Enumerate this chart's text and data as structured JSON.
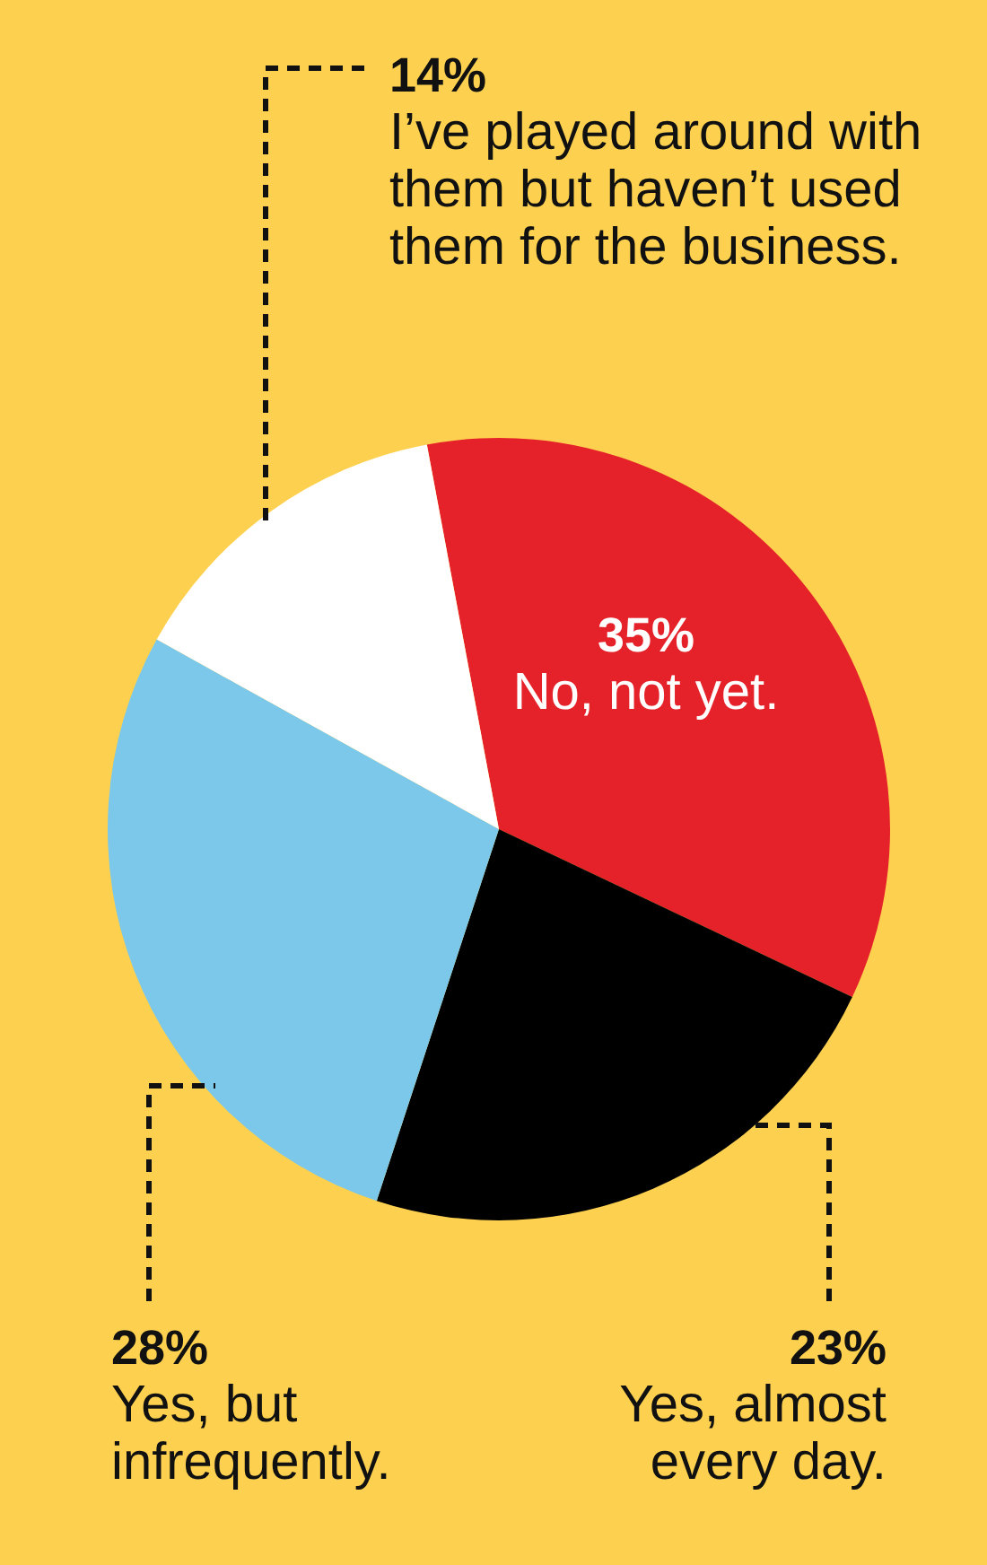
{
  "chart_data": {
    "type": "pie",
    "categories": [
      "No, not yet.",
      "Yes, almost every day.",
      "Yes, but infrequently.",
      "I’ve played around with them but haven’t used them for the business."
    ],
    "values": [
      35,
      23,
      28,
      14
    ],
    "colors": [
      "#e52229",
      "#000000",
      "#7bc8ea",
      "#ffffff"
    ],
    "value_labels": [
      "35%",
      "23%",
      "28%",
      "14%"
    ]
  }
}
